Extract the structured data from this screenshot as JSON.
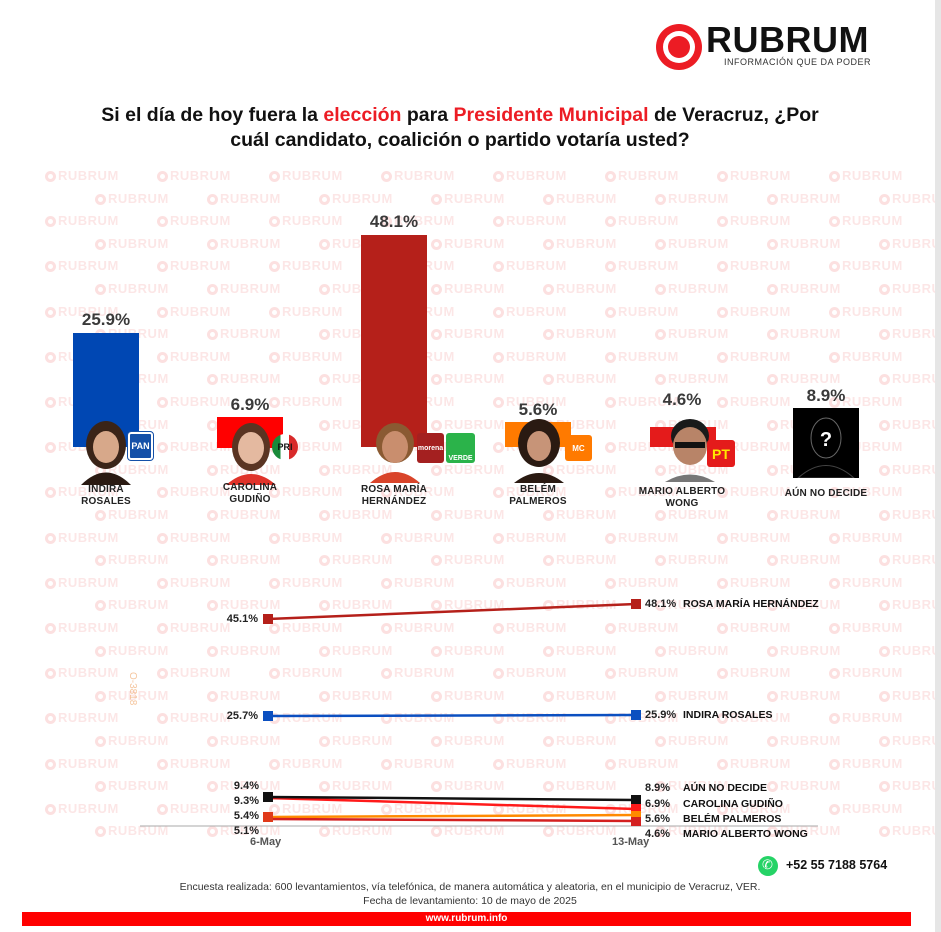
{
  "brand": {
    "name": "RUBRUM",
    "tagline": "INFORMACIÓN QUE DA PODER",
    "accent_color": "#ec1c24"
  },
  "title": {
    "part1": "Si el día de hoy fuera la ",
    "highlight1": "elección",
    "part2": " para ",
    "highlight2": "Presidente Municipal",
    "part3": " de Veracruz, ¿Por",
    "line2": "cuál candidato, coalición o partido votaría usted?"
  },
  "watermark_text": "RUBRUM",
  "side_code": "O-3818",
  "chart_data": [
    {
      "type": "bar",
      "title": "Si el día de hoy fuera la elección para Presidente Municipal de Veracruz, ¿Por cuál candidato, coalición o partido votaría usted?",
      "categories": [
        "INDIRA ROSALES",
        "CAROLINA GUDIÑO",
        "ROSA MARÍA HERNÁNDEZ",
        "BELÉM PALMEROS",
        "MARIO ALBERTO WONG",
        "AÚN NO DECIDE"
      ],
      "values": [
        25.9,
        6.9,
        48.1,
        5.6,
        4.6,
        8.9
      ],
      "value_labels": [
        "25.9%",
        "6.9%",
        "48.1%",
        "5.6%",
        "4.6%",
        "8.9%"
      ],
      "colors": [
        "#0047b3",
        "#ff0000",
        "#b5201a",
        "#ff7a00",
        "#e41b1b",
        "#000000"
      ],
      "parties": [
        "PAN",
        "PRI",
        "morena / VERDE",
        "MC",
        "PT",
        ""
      ],
      "xlabel": "",
      "ylabel": "",
      "grid": false,
      "legend": "none"
    },
    {
      "type": "line",
      "x": [
        "6-May",
        "13-May"
      ],
      "series": [
        {
          "name": "ROSA MARÍA HERNÁNDEZ",
          "values": [
            45.1,
            48.1
          ],
          "color": "#b5201a"
        },
        {
          "name": "INDIRA ROSALES",
          "values": [
            25.7,
            25.9
          ],
          "color": "#0b4fc0"
        },
        {
          "name": "AÚN NO DECIDE",
          "values": [
            9.4,
            8.9
          ],
          "color": "#111111"
        },
        {
          "name": "CAROLINA GUDIÑO",
          "values": [
            9.3,
            6.9
          ],
          "color": "#ff1a1a"
        },
        {
          "name": "BELÉM PALMEROS",
          "values": [
            5.4,
            5.6
          ],
          "color": "#ff8a00"
        },
        {
          "name": "MARIO ALBERTO WONG",
          "values": [
            5.1,
            4.6
          ],
          "color": "#d42020"
        }
      ],
      "legend": "inline-right",
      "grid": false
    }
  ],
  "bars": [
    {
      "name_line1": "INDIRA",
      "name_line2": "ROSALES",
      "pct": "25.9%",
      "party": "PAN"
    },
    {
      "name_line1": "CAROLINA",
      "name_line2": "GUDIÑO",
      "pct": "6.9%",
      "party": "PRI"
    },
    {
      "name_line1": "ROSA MARÍA",
      "name_line2": "HERNÁNDEZ",
      "pct": "48.1%",
      "party1": "morena",
      "party2": "VERDE"
    },
    {
      "name_line1": "BELÉM",
      "name_line2": "PALMEROS",
      "pct": "5.6%",
      "party": "MC"
    },
    {
      "name_line1": "MARIO ALBERTO",
      "name_line2": "WONG",
      "pct": "4.6%",
      "party": "PT"
    },
    {
      "name_line1": "AÚN NO DECIDE",
      "name_line2": "",
      "pct": "8.9%",
      "party": "?"
    }
  ],
  "trend": {
    "x_labels": [
      "6-May",
      "13-May"
    ],
    "rows": [
      {
        "left": "45.1%",
        "right": "48.1%",
        "name": "ROSA MARÍA HERNÁNDEZ"
      },
      {
        "left": "25.7%",
        "right": "25.9%",
        "name": "INDIRA ROSALES"
      },
      {
        "left": "9.4%",
        "right": "8.9%",
        "name": "AÚN NO DECIDE"
      },
      {
        "left": "9.3%",
        "right": "6.9%",
        "name": "CAROLINA GUDIÑO"
      },
      {
        "left": "5.4%",
        "right": "5.6%",
        "name": "BELÉM PALMEROS"
      },
      {
        "left": "5.1%",
        "right": "4.6%",
        "name": "MARIO ALBERTO WONG"
      }
    ]
  },
  "footer": {
    "phone": "+52 55 7188 5764",
    "note1": "Encuesta realizada: 600 levantamientos, vía telefónica, de manera automática y aleatoria, en el municipio de Veracruz, VER.",
    "note2": "Fecha de levantamiento: 10 de mayo de 2025",
    "website": "www.rubrum.info"
  }
}
